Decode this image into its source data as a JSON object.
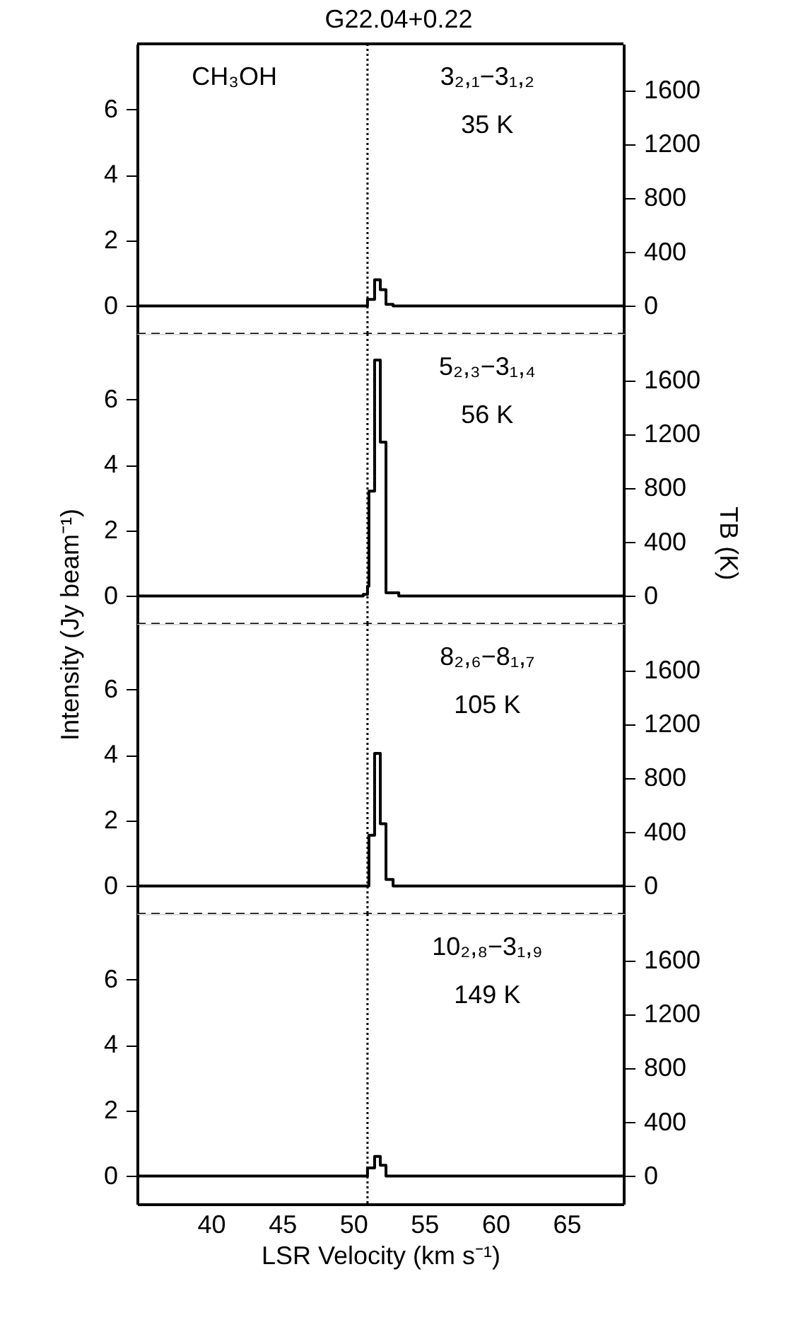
{
  "chart_data": [
    {
      "type": "step",
      "title": "G22.04+0.22",
      "x": [
        34.8,
        50.8,
        51.0,
        51.5,
        51.9,
        52.3,
        52.8,
        69.0
      ],
      "series": [
        {
          "color": "#000000",
          "values": [
            0,
            0,
            0.2,
            0.8,
            0.5,
            0.05,
            0,
            0
          ]
        }
      ],
      "xlim": [
        34.8,
        69.0
      ],
      "xticks": [
        40,
        45,
        50,
        55,
        60,
        65
      ],
      "ylim": [
        -0.85,
        8.0
      ],
      "yticks": [
        0,
        2,
        4,
        6
      ],
      "y2lim": [
        -207,
        1948
      ],
      "y2ticks": [
        0,
        400,
        800,
        1200,
        1600
      ],
      "ref_lines": [
        {
          "axis": "x",
          "value": 51.0,
          "line_style": "dotted"
        }
      ],
      "annotations": [
        "CH₃OH",
        "3₂,₁−3₁,₂",
        "35 K"
      ],
      "tick_labels": "y"
    },
    {
      "type": "step",
      "ylabel": "Intensity (Jy beam⁻¹)",
      "y2label": "TB (K)",
      "x": [
        34.8,
        50.7,
        51.0,
        51.1,
        51.5,
        51.9,
        52.3,
        53.2,
        69.0
      ],
      "series": [
        {
          "color": "#000000",
          "values": [
            0,
            0.05,
            0.3,
            3.2,
            7.2,
            4.7,
            0.1,
            0,
            0
          ]
        }
      ],
      "xlim": [
        34.8,
        69.0
      ],
      "xticks": [
        40,
        45,
        50,
        55,
        60,
        65
      ],
      "ylim": [
        -0.85,
        8.0
      ],
      "yticks": [
        0,
        2,
        4,
        6
      ],
      "y2lim": [
        -207,
        1948
      ],
      "y2ticks": [
        0,
        400,
        800,
        1200,
        1600
      ],
      "ref_lines": [
        {
          "axis": "x",
          "value": 51.0,
          "line_style": "dotted"
        }
      ],
      "annotations": [
        "5₂,₃−3₁,₄",
        "56 K"
      ],
      "tick_labels": "y"
    },
    {
      "type": "step",
      "x": [
        34.8,
        51.0,
        51.1,
        51.5,
        51.9,
        52.3,
        52.8,
        69.0
      ],
      "series": [
        {
          "color": "#000000",
          "values": [
            0,
            0,
            1.55,
            4.05,
            1.9,
            0.2,
            0,
            0
          ]
        }
      ],
      "xlim": [
        34.8,
        69.0
      ],
      "xticks": [
        40,
        45,
        50,
        55,
        60,
        65
      ],
      "ylim": [
        -0.85,
        8.0
      ],
      "yticks": [
        0,
        2,
        4,
        6
      ],
      "y2lim": [
        -207,
        1948
      ],
      "y2ticks": [
        0,
        400,
        800,
        1200,
        1600
      ],
      "ref_lines": [
        {
          "axis": "x",
          "value": 51.0,
          "line_style": "dotted"
        }
      ],
      "annotations": [
        "8₂,₆−8₁,₇",
        "105 K"
      ],
      "tick_labels": "y"
    },
    {
      "type": "step",
      "xlabel": "LSR Velocity (km s⁻¹)",
      "x": [
        34.8,
        51.0,
        51.5,
        51.9,
        52.3,
        69.0
      ],
      "series": [
        {
          "color": "#000000",
          "values": [
            0,
            0.25,
            0.6,
            0.33,
            0,
            0
          ]
        }
      ],
      "xlim": [
        34.8,
        69.0
      ],
      "xticks": [
        40,
        45,
        50,
        55,
        60,
        65
      ],
      "ylim": [
        -0.85,
        8.0
      ],
      "yticks": [
        0,
        2,
        4,
        6
      ],
      "y2lim": [
        -207,
        1948
      ],
      "y2ticks": [
        0,
        400,
        800,
        1200,
        1600
      ],
      "ref_lines": [
        {
          "axis": "x",
          "value": 51.0,
          "line_style": "dotted"
        }
      ],
      "annotations": [
        "10₂,₈−3₁,₉",
        "149 K"
      ]
    }
  ]
}
